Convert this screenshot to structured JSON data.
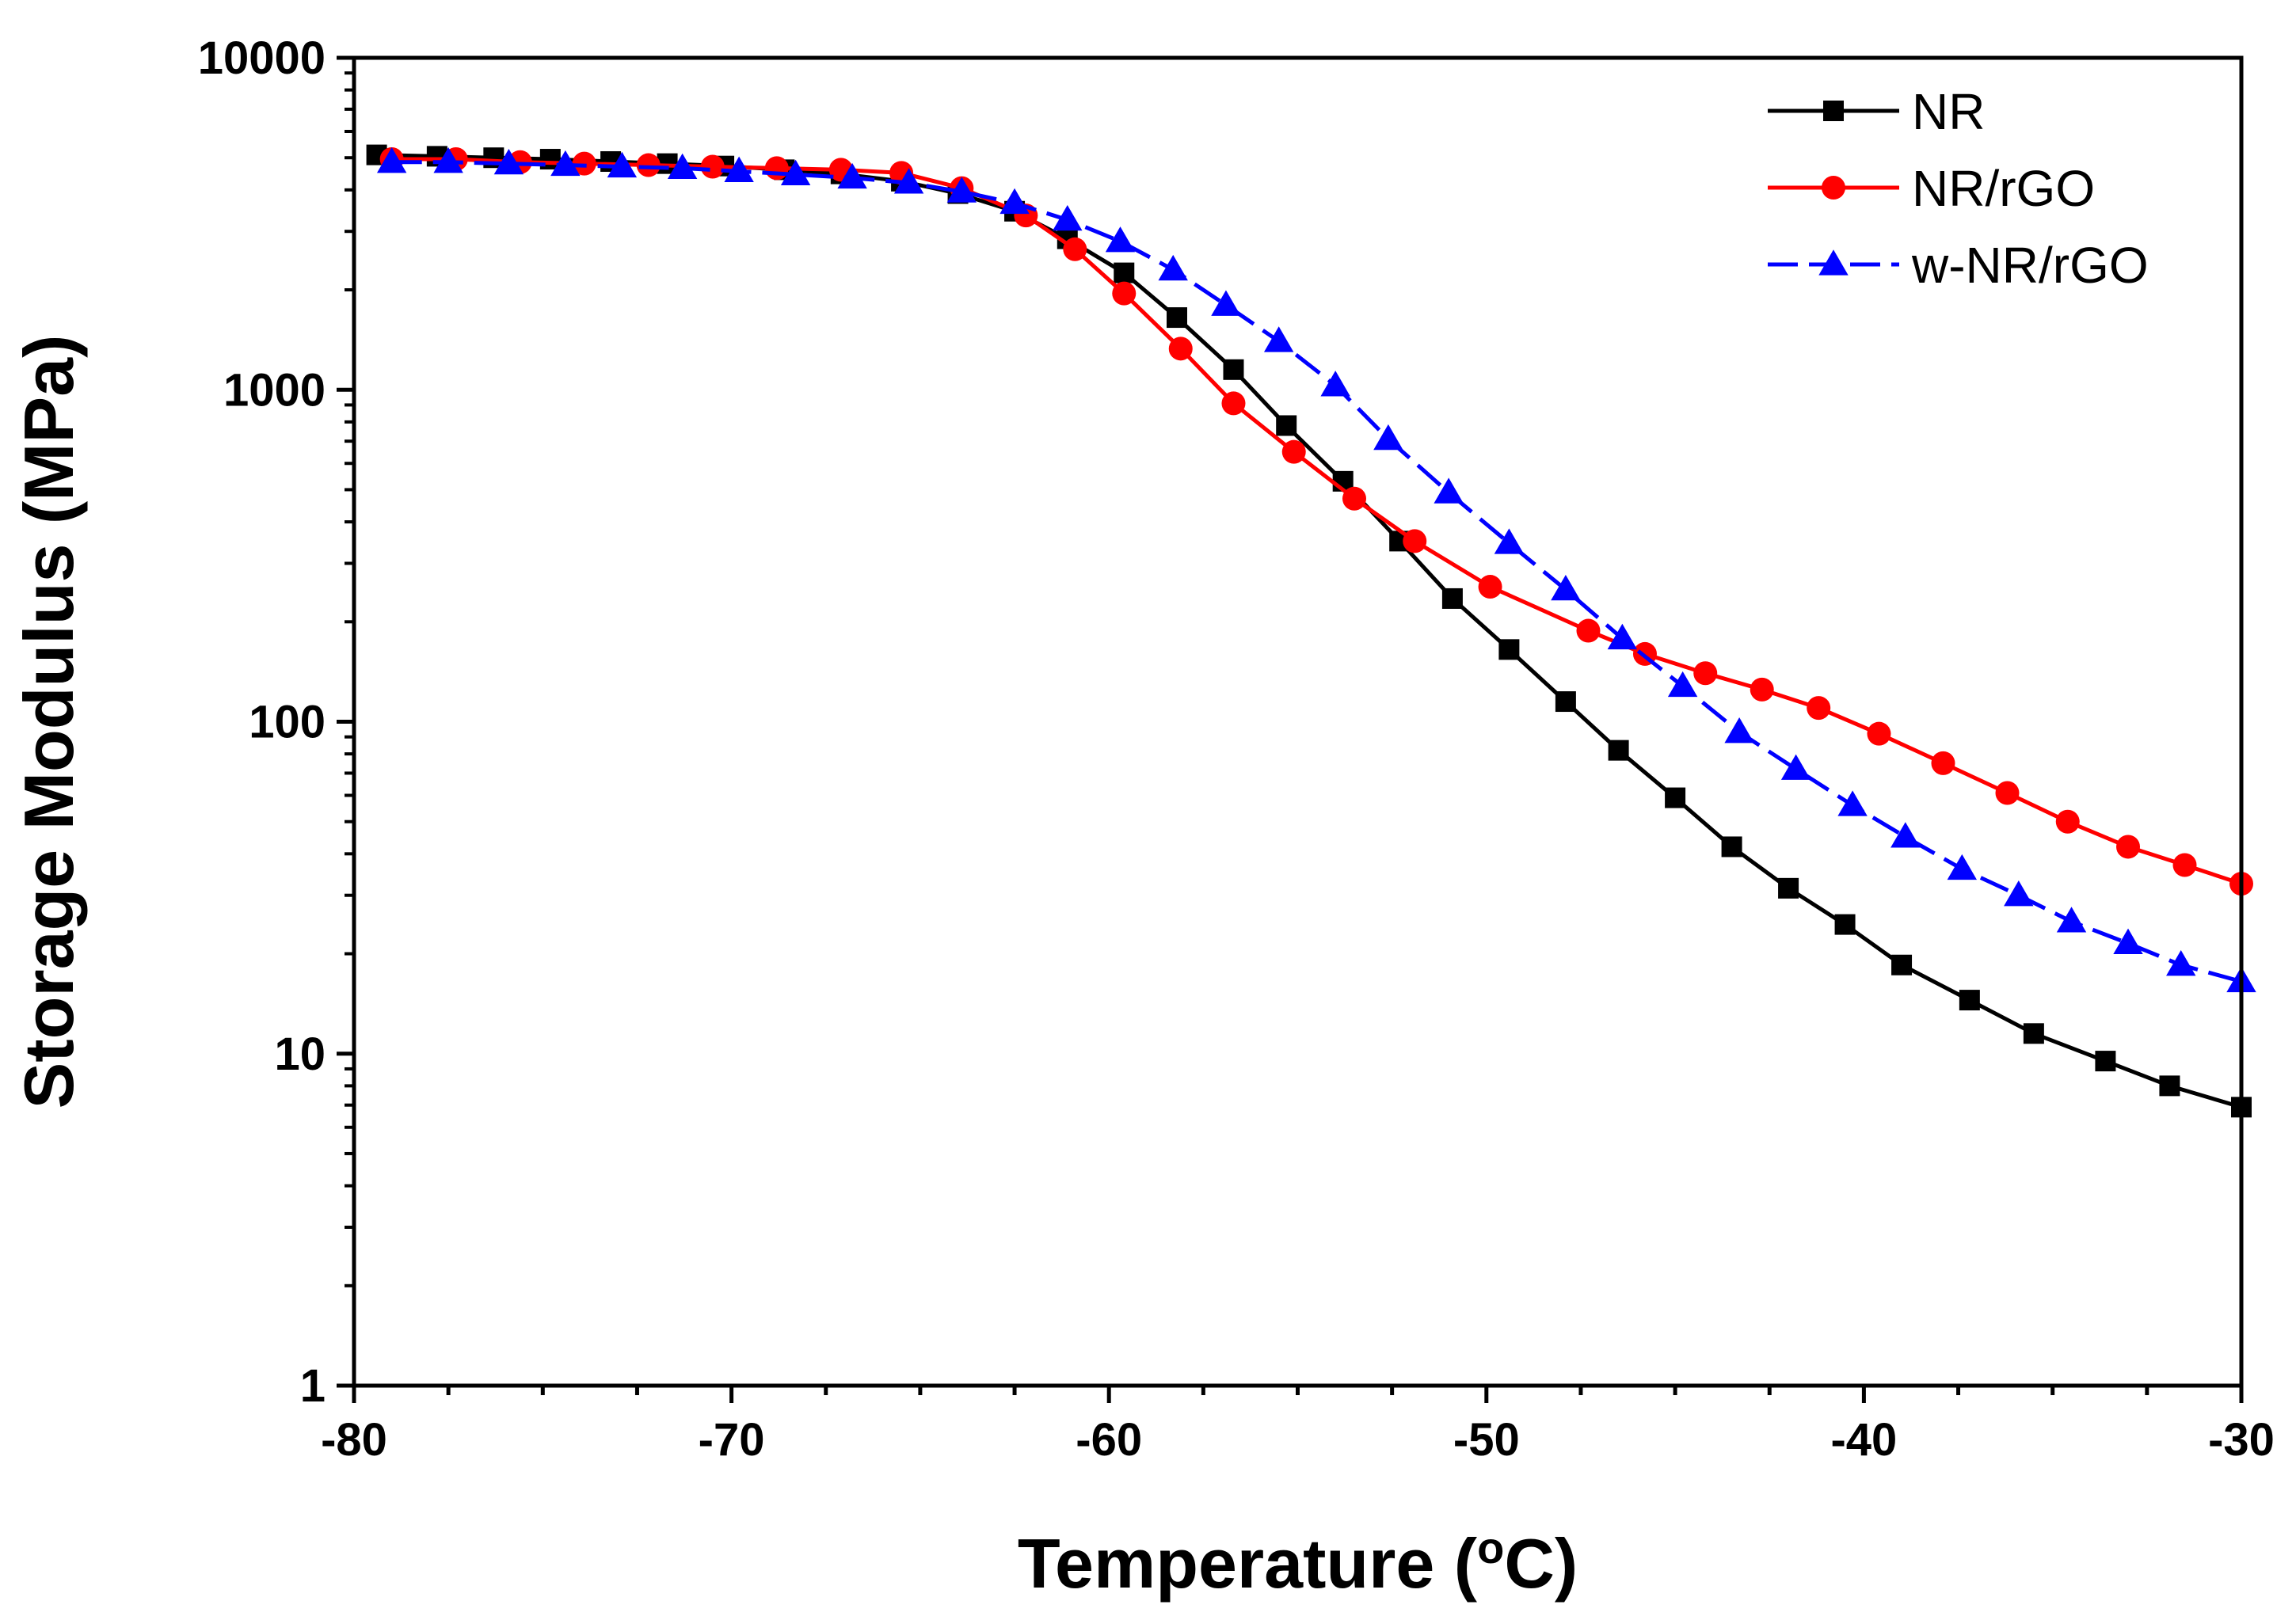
{
  "chart_data": {
    "type": "line",
    "title": "",
    "xlabel_main": "Temperature (",
    "xlabel_sup": "o",
    "xlabel_end": "C)",
    "ylabel": "Storage Modulus (MPa)",
    "xlim": [
      -80,
      -30
    ],
    "ylim": [
      1,
      10000
    ],
    "yscale": "log",
    "xticks": [
      -80,
      -70,
      -60,
      -50,
      -40,
      -30
    ],
    "xtick_labels": [
      "-80",
      "-70",
      "-60",
      "-50",
      "-40",
      "-30"
    ],
    "yticks": [
      1,
      10,
      100,
      1000,
      10000
    ],
    "ytick_labels": [
      "1",
      "10",
      "100",
      "1000",
      "10000"
    ],
    "legend_position": "top-right",
    "series": [
      {
        "name": "NR",
        "color": "#000000",
        "marker": "square",
        "dash": "solid",
        "x": [
          -79.4,
          -77.8,
          -76.3,
          -74.8,
          -73.2,
          -71.7,
          -70.2,
          -68.6,
          -67.1,
          -65.5,
          -64.0,
          -62.5,
          -61.1,
          -59.6,
          -58.2,
          -56.7,
          -55.3,
          -53.8,
          -52.3,
          -50.9,
          -49.4,
          -47.9,
          -46.5,
          -45.0,
          -43.5,
          -42.0,
          -40.5,
          -39.0,
          -37.2,
          -35.5,
          -33.6,
          -31.9,
          -30.0
        ],
        "y": [
          5100,
          5050,
          5000,
          4950,
          4870,
          4800,
          4720,
          4600,
          4470,
          4250,
          3900,
          3450,
          2850,
          2250,
          1650,
          1150,
          780,
          530,
          350,
          235,
          165,
          115,
          82,
          59,
          42,
          31.5,
          24.5,
          18.5,
          14.5,
          11.5,
          9.5,
          8.0,
          6.9
        ]
      },
      {
        "name": "NR/rGO",
        "color": "#ff0000",
        "marker": "circle",
        "dash": "solid",
        "x": [
          -79.0,
          -77.3,
          -75.6,
          -73.9,
          -72.2,
          -70.5,
          -68.8,
          -67.1,
          -65.5,
          -63.9,
          -62.2,
          -60.9,
          -59.6,
          -58.1,
          -56.7,
          -55.1,
          -53.5,
          -51.9,
          -49.9,
          -47.3,
          -45.8,
          -44.2,
          -42.7,
          -41.2,
          -39.6,
          -37.9,
          -36.2,
          -34.6,
          -33.0,
          -31.5,
          -30.0
        ],
        "y": [
          4950,
          4950,
          4850,
          4800,
          4750,
          4700,
          4650,
          4600,
          4500,
          4050,
          3350,
          2650,
          1950,
          1330,
          910,
          650,
          470,
          350,
          255,
          188,
          160,
          140,
          125,
          110,
          92,
          75,
          61,
          50,
          42,
          37,
          32.5
        ]
      },
      {
        "name": "w-NR/rGO",
        "color": "#0000ff",
        "marker": "triangle",
        "dash": "dashed",
        "x": [
          -79.0,
          -77.5,
          -75.9,
          -74.4,
          -72.9,
          -71.3,
          -69.8,
          -68.3,
          -66.8,
          -65.3,
          -63.9,
          -62.5,
          -61.1,
          -59.7,
          -58.3,
          -56.9,
          -55.5,
          -54.0,
          -52.6,
          -51.0,
          -49.4,
          -47.9,
          -46.4,
          -44.8,
          -43.3,
          -41.8,
          -40.3,
          -38.9,
          -37.4,
          -35.9,
          -34.5,
          -33.0,
          -31.6,
          -30.0
        ],
        "y": [
          4850,
          4850,
          4800,
          4750,
          4700,
          4650,
          4550,
          4450,
          4350,
          4200,
          3950,
          3650,
          3250,
          2800,
          2300,
          1800,
          1400,
          1030,
          710,
          490,
          345,
          250,
          178,
          128,
          93,
          72,
          56,
          45,
          36,
          30,
          25,
          21.5,
          18.5,
          16.5
        ]
      }
    ]
  }
}
